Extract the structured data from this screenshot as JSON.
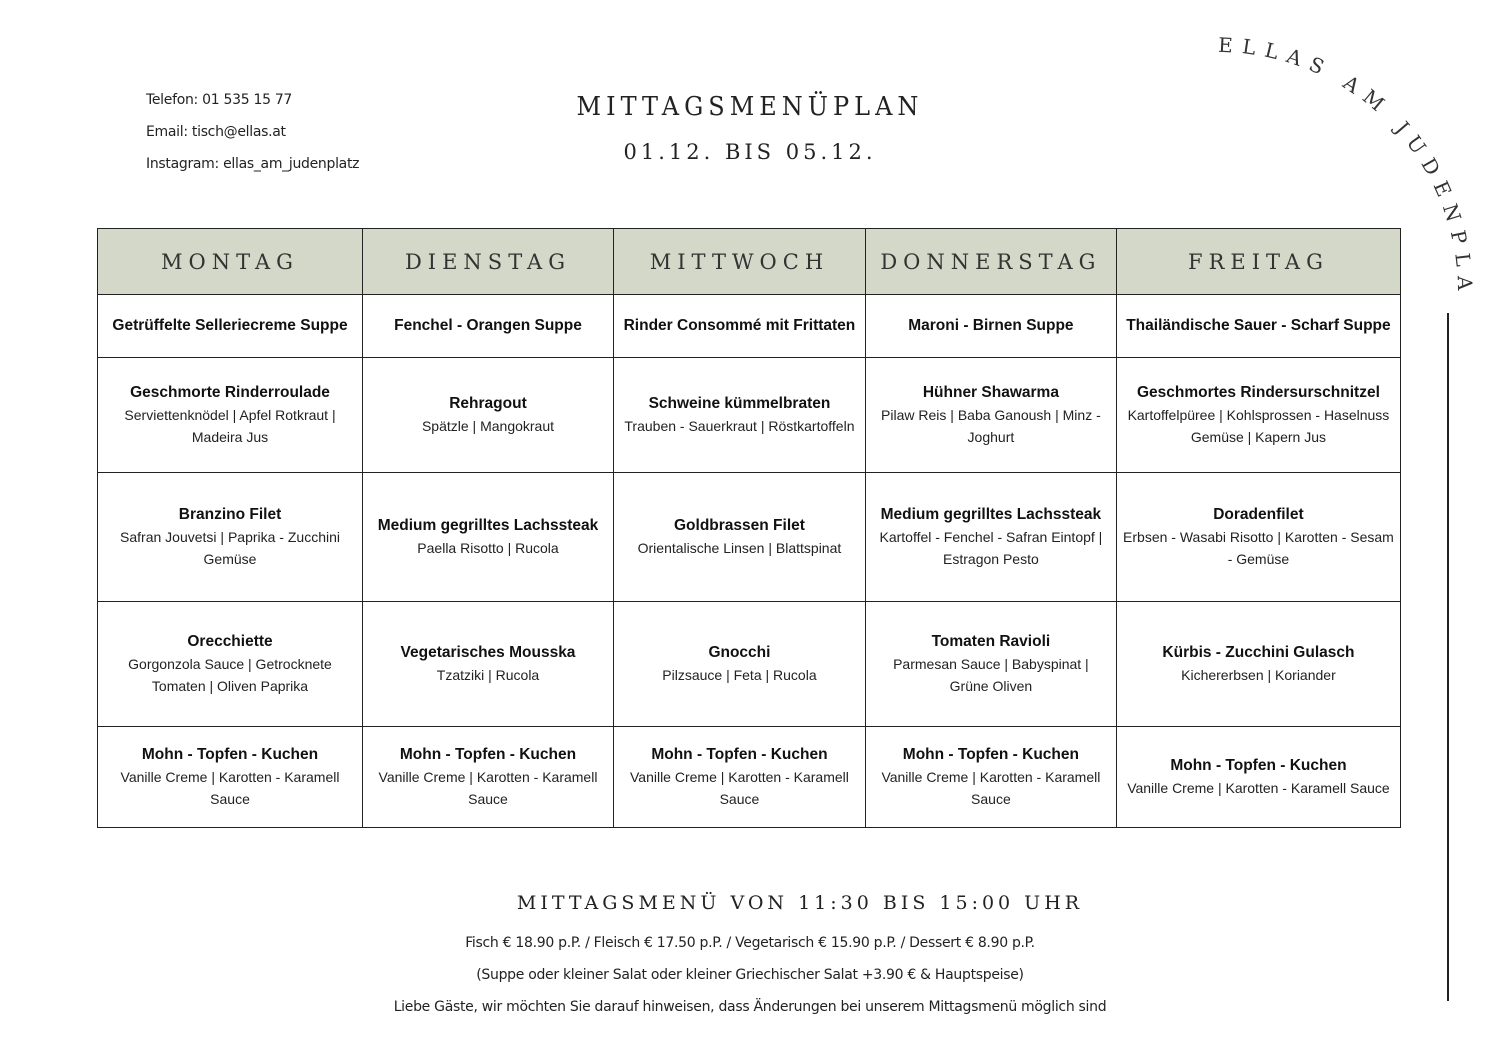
{
  "contact": {
    "phone": "Telefon: 01 535 15 77",
    "email": "Email: tisch@ellas.at",
    "instagram": "Instagram: ellas_am_judenplatz"
  },
  "header": {
    "title": "MITTAGSMENÜPLAN",
    "dates": "01.12. BIS 05.12."
  },
  "brand": "ELLAS AM JUDENPLATZ",
  "colors": {
    "header_bg": "#d3d8c8"
  },
  "table": {
    "days": [
      "MONTAG",
      "DIENSTAG",
      "MITTWOCH",
      "DONNERSTAG",
      "FREITAG"
    ],
    "rows": [
      [
        {
          "title": "Getrüffelte Selleriecreme Suppe",
          "desc": ""
        },
        {
          "title": "Fenchel - Orangen Suppe",
          "desc": ""
        },
        {
          "title": "Rinder Consommé mit Frittaten",
          "desc": ""
        },
        {
          "title": "Maroni - Birnen Suppe",
          "desc": ""
        },
        {
          "title": "Thailändische Sauer - Scharf Suppe",
          "desc": ""
        }
      ],
      [
        {
          "title": "Geschmorte Rinderroulade",
          "desc": "Serviettenknödel | Apfel Rotkraut | Madeira Jus"
        },
        {
          "title": "Rehragout",
          "desc": "Spätzle | Mangokraut"
        },
        {
          "title": "Schweine kümmelbraten",
          "desc": "Trauben - Sauerkraut | Röstkartoffeln"
        },
        {
          "title": "Hühner Shawarma",
          "desc": "Pilaw Reis | Baba Ganoush | Minz - Joghurt"
        },
        {
          "title": "Geschmortes Rindersurschnitzel",
          "desc": "Kartoffelpüree | Kohlsprossen - Haselnuss Gemüse | Kapern Jus"
        }
      ],
      [
        {
          "title": "Branzino Filet",
          "desc": "Safran Jouvetsi | Paprika - Zucchini Gemüse"
        },
        {
          "title": "Medium gegrilltes Lachssteak",
          "desc": "Paella Risotto | Rucola"
        },
        {
          "title": "Goldbrassen Filet",
          "desc": "Orientalische Linsen | Blattspinat"
        },
        {
          "title": "Medium gegrilltes Lachssteak",
          "desc": "Kartoffel - Fenchel - Safran Eintopf | Estragon Pesto"
        },
        {
          "title": "Doradenfilet",
          "desc": "Erbsen - Wasabi Risotto | Karotten - Sesam - Gemüse"
        }
      ],
      [
        {
          "title": "Orecchiette",
          "desc": "Gorgonzola Sauce | Getrocknete Tomaten | Oliven Paprika"
        },
        {
          "title": "Vegetarisches Mousska",
          "desc": "Tzatziki | Rucola"
        },
        {
          "title": "Gnocchi",
          "desc": "Pilzsauce | Feta | Rucola"
        },
        {
          "title": "Tomaten Ravioli",
          "desc": "Parmesan Sauce | Babyspinat | Grüne Oliven"
        },
        {
          "title": "Kürbis - Zucchini Gulasch",
          "desc": "Kichererbsen | Koriander"
        }
      ],
      [
        {
          "title": "Mohn - Topfen - Kuchen",
          "desc": "Vanille Creme | Karotten  - Karamell Sauce"
        },
        {
          "title": "Mohn - Topfen - Kuchen",
          "desc": "Vanille Creme | Karotten - Karamell Sauce"
        },
        {
          "title": "Mohn - Topfen - Kuchen",
          "desc": "Vanille Creme | Karotten - Karamell Sauce"
        },
        {
          "title": "Mohn - Topfen - Kuchen",
          "desc": "Vanille Creme | Karotten - Karamell Sauce"
        },
        {
          "title": "Mohn - Topfen - Kuchen",
          "desc": "Vanille Creme | Karotten - Karamell Sauce"
        }
      ]
    ]
  },
  "footer": {
    "hours": "MITTAGSMENÜ VON 11:30 BIS 15:00 UHR",
    "prices": "Fisch € 18.90 p.P. / Fleisch € 17.50 p.P. / Vegetarisch € 15.90 p.P. / Dessert € 8.90 p.P.",
    "note": "(Suppe oder kleiner Salat oder kleiner Griechischer Salat +3.90 € & Hauptspeise)",
    "disclaimer": "Liebe Gäste, wir möchten Sie darauf hinweisen, dass Änderungen bei unserem Mittagsmenü möglich sind"
  }
}
